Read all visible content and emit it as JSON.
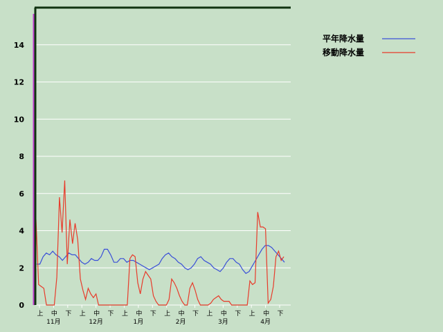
{
  "chart_data": {
    "type": "line",
    "title": "",
    "xlabel": "",
    "ylabel": "",
    "ylim": [
      0,
      16
    ],
    "yticks": [
      "0",
      "2",
      "4",
      "6",
      "8",
      "10",
      "12",
      "14"
    ],
    "x_ticks": [
      "上",
      "中",
      "下",
      "上",
      "中",
      "下",
      "上",
      "中",
      "下",
      "上",
      "中",
      "下",
      "上",
      "中",
      "下",
      "上",
      "中",
      "下"
    ],
    "months": [
      "11月",
      "12月",
      "1月",
      "2月",
      "3月",
      "4月"
    ],
    "grid": true,
    "legend_position": "top-right",
    "series": [
      {
        "name": "平年降水量",
        "color": "#3a4fd8",
        "values": [
          2.2,
          2.2,
          2.6,
          2.8,
          2.7,
          2.9,
          2.7,
          2.6,
          2.4,
          2.6,
          2.8,
          2.7,
          2.7,
          2.5,
          2.3,
          2.2,
          2.3,
          2.5,
          2.4,
          2.4,
          2.6,
          3.0,
          3.0,
          2.7,
          2.3,
          2.3,
          2.5,
          2.5,
          2.3,
          2.4,
          2.4,
          2.3,
          2.2,
          2.1,
          2.0,
          1.9,
          2.0,
          2.1,
          2.2,
          2.5,
          2.7,
          2.8,
          2.6,
          2.5,
          2.3,
          2.2,
          2.0,
          1.9,
          2.0,
          2.2,
          2.5,
          2.6,
          2.4,
          2.3,
          2.2,
          2.0,
          1.9,
          1.8,
          2.0,
          2.3,
          2.5,
          2.5,
          2.3,
          2.2,
          1.9,
          1.7,
          1.8,
          2.1,
          2.4,
          2.7,
          3.0,
          3.2,
          3.2,
          3.1,
          2.9,
          2.7,
          2.5,
          2.3
        ]
      },
      {
        "name": "移動降水量",
        "color": "#e83a2a",
        "values": [
          4.6,
          1.1,
          1.0,
          0.9,
          0.0,
          0.0,
          0.0,
          0.0,
          1.5,
          5.8,
          3.9,
          6.7,
          2.2,
          4.6,
          3.3,
          4.4,
          3.5,
          1.4,
          0.8,
          0.3,
          0.9,
          0.6,
          0.4,
          0.6,
          0.0,
          0.0,
          0.0,
          0.0,
          0.0,
          0.0,
          0.0,
          0.0,
          0.0,
          0.0,
          0.0,
          0.0,
          2.5,
          2.7,
          2.6,
          1.2,
          0.6,
          1.4,
          1.8,
          1.6,
          1.4,
          0.5,
          0.2,
          0.0,
          0.0,
          0.0,
          0.0,
          0.3,
          1.4,
          1.2,
          0.9,
          0.5,
          0.2,
          0.0,
          0.0,
          0.9,
          1.2,
          0.8,
          0.3,
          0.0,
          0.0,
          0.0,
          0.0,
          0.1,
          0.3,
          0.4,
          0.5,
          0.3,
          0.2,
          0.2,
          0.2,
          0.0,
          0.0,
          0.0,
          0.0,
          0.0,
          0.0,
          0.0,
          1.3,
          1.1,
          1.2,
          5.0,
          4.2,
          4.2,
          4.1,
          0.1,
          0.3,
          1.0,
          2.6,
          2.9,
          2.4,
          2.6
        ]
      }
    ]
  }
}
